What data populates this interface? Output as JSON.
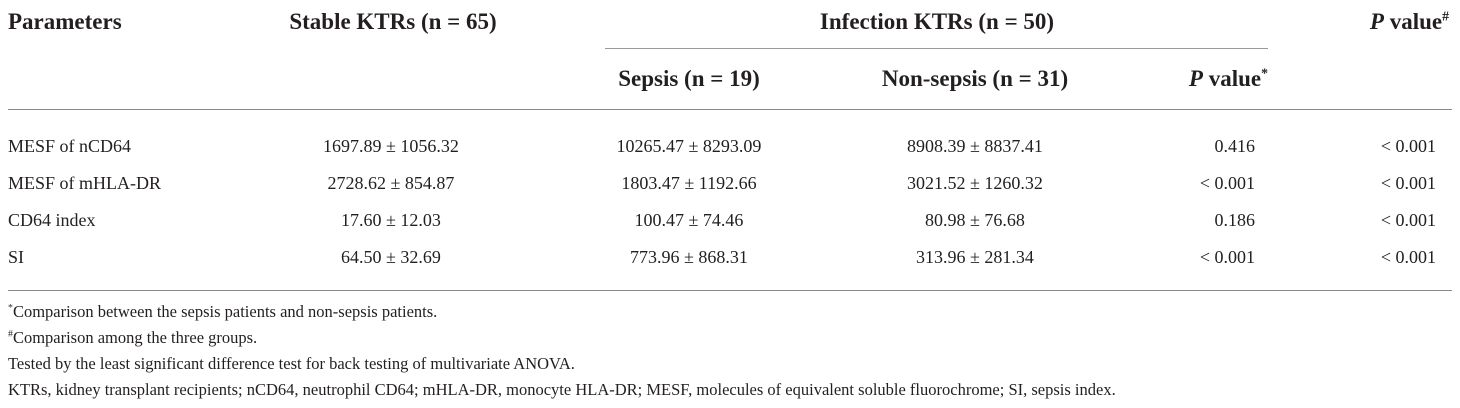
{
  "headers": {
    "parameters": "Parameters",
    "stable": "Stable KTRs (n = 65)",
    "infection": "Infection KTRs (n = 50)",
    "sepsis": "Sepsis (n = 19)",
    "non_sepsis": "Non-sepsis (n = 31)",
    "p_label": "P",
    "value_label": " value",
    "p_inner_mark": "*",
    "p_outer_mark": "#"
  },
  "rows": [
    {
      "param": "MESF of nCD64",
      "stable": "1697.89 ± 1056.32",
      "sepsis": "10265.47 ± 8293.09",
      "non_sepsis": "8908.39 ± 8837.41",
      "p_inner": "0.416",
      "p_outer": "< 0.001"
    },
    {
      "param": "MESF of mHLA-DR",
      "stable": "2728.62 ± 854.87",
      "sepsis": "1803.47 ± 1192.66",
      "non_sepsis": "3021.52 ± 1260.32",
      "p_inner": "< 0.001",
      "p_outer": "< 0.001"
    },
    {
      "param": "CD64 index",
      "stable": "17.60 ± 12.03",
      "sepsis": "100.47 ± 74.46",
      "non_sepsis": "80.98 ± 76.68",
      "p_inner": "0.186",
      "p_outer": "< 0.001"
    },
    {
      "param": "SI",
      "stable": "64.50 ± 32.69",
      "sepsis": "773.96 ± 868.31",
      "non_sepsis": "313.96 ± 281.34",
      "p_inner": "< 0.001",
      "p_outer": "< 0.001"
    }
  ],
  "footnotes": {
    "star_mark": "*",
    "star_text": "Comparison between the sepsis patients and non-sepsis patients.",
    "hash_mark": "#",
    "hash_text": "Comparison among the three groups.",
    "test_note": "Tested by the least significant difference test for back testing of multivariate ANOVA.",
    "abbrev_note": "KTRs, kidney transplant recipients; nCD64, neutrophil CD64; mHLA-DR, monocyte HLA-DR; MESF, molecules of equivalent soluble fluorochrome; SI, sepsis index."
  }
}
